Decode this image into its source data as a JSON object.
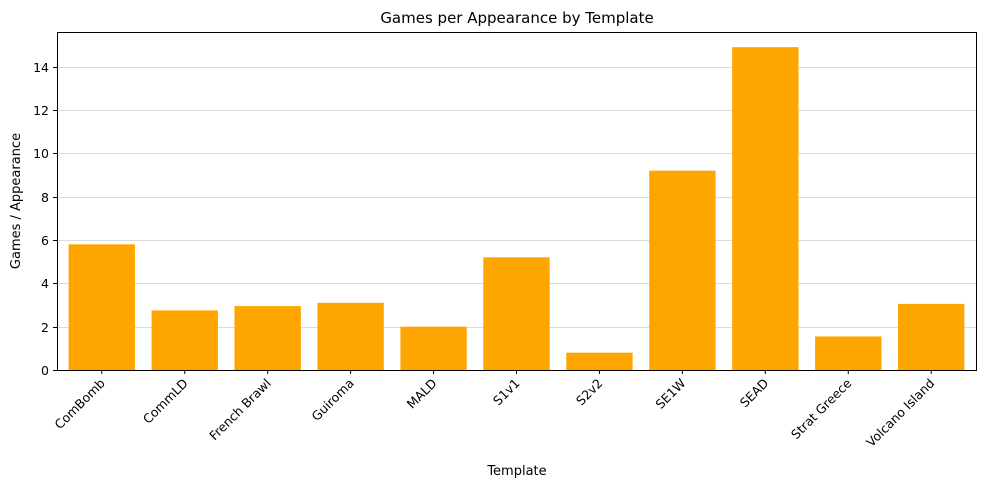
{
  "chart_data": {
    "type": "bar",
    "title": "Games per Appearance by Template",
    "xlabel": "Template",
    "ylabel": "Games / Appearance",
    "categories": [
      "ComBomb",
      "CommLD",
      "French Brawl",
      "Guiroma",
      "MALD",
      "S1v1",
      "S2v2",
      "SE1W",
      "SEAD",
      "Strat Greece",
      "Volcano Island"
    ],
    "values": [
      5.8,
      2.75,
      2.95,
      3.1,
      2.0,
      5.2,
      0.8,
      9.2,
      14.9,
      1.55,
      3.05
    ],
    "ylim": [
      0,
      15.6
    ],
    "yticks": [
      0,
      2,
      4,
      6,
      8,
      10,
      12,
      14
    ],
    "grid": "horizontal",
    "bar_color": "#ffa500"
  }
}
